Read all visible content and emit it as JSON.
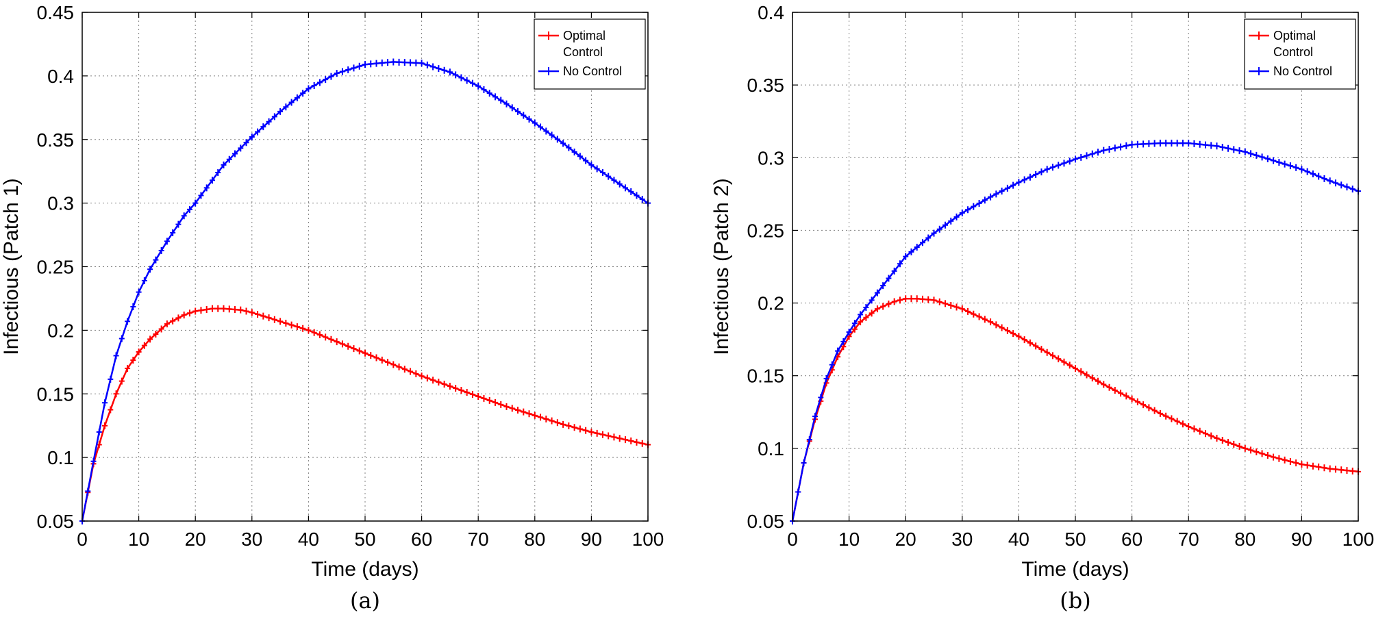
{
  "chart_data": [
    {
      "type": "line",
      "caption": "(a)",
      "xlabel": "Time (days)",
      "ylabel": "Infectious (Patch 1)",
      "xlim": [
        0,
        100
      ],
      "ylim": [
        0.05,
        0.45
      ],
      "xticks": [
        0,
        10,
        20,
        30,
        40,
        50,
        60,
        70,
        80,
        90,
        100
      ],
      "xtick_labels": [
        "0",
        "10",
        "20",
        "30",
        "40",
        "50",
        "60",
        "70",
        "80",
        "90",
        "100"
      ],
      "yticks": [
        0.05,
        0.1,
        0.15,
        0.2,
        0.25,
        0.3,
        0.35,
        0.4,
        0.45
      ],
      "ytick_labels": [
        "0.05",
        "0.1",
        "0.15",
        "0.2",
        "0.25",
        "0.3",
        "0.35",
        "0.4",
        "0.45"
      ],
      "grid": true,
      "legend_position": "top-right",
      "series": [
        {
          "name_lines": [
            "Optimal",
            "Control"
          ],
          "color": "#ff0000",
          "x": [
            0,
            2,
            4,
            6,
            8,
            10,
            12,
            15,
            18,
            20,
            23,
            25,
            28,
            30,
            35,
            40,
            45,
            50,
            55,
            60,
            65,
            70,
            75,
            80,
            85,
            90,
            95,
            100
          ],
          "y": [
            0.05,
            0.095,
            0.125,
            0.15,
            0.17,
            0.183,
            0.193,
            0.205,
            0.212,
            0.215,
            0.217,
            0.217,
            0.216,
            0.214,
            0.207,
            0.2,
            0.191,
            0.182,
            0.173,
            0.164,
            0.156,
            0.148,
            0.14,
            0.133,
            0.126,
            0.12,
            0.115,
            0.11
          ]
        },
        {
          "name": "No Control",
          "color": "#0000ff",
          "x": [
            0,
            2,
            4,
            6,
            8,
            10,
            12,
            15,
            18,
            20,
            25,
            30,
            35,
            40,
            45,
            50,
            55,
            60,
            65,
            70,
            75,
            80,
            85,
            90,
            95,
            100
          ],
          "y": [
            0.05,
            0.097,
            0.143,
            0.18,
            0.207,
            0.23,
            0.248,
            0.27,
            0.29,
            0.3,
            0.33,
            0.352,
            0.372,
            0.39,
            0.402,
            0.409,
            0.411,
            0.41,
            0.403,
            0.392,
            0.378,
            0.363,
            0.347,
            0.33,
            0.315,
            0.3
          ]
        }
      ]
    },
    {
      "type": "line",
      "caption": "(b)",
      "xlabel": "Time (days)",
      "ylabel": "Infectious (Patch 2)",
      "xlim": [
        0,
        100
      ],
      "ylim": [
        0.05,
        0.4
      ],
      "xticks": [
        0,
        10,
        20,
        30,
        40,
        50,
        60,
        70,
        80,
        90,
        100
      ],
      "xtick_labels": [
        "0",
        "10",
        "20",
        "30",
        "40",
        "50",
        "60",
        "70",
        "80",
        "90",
        "100"
      ],
      "yticks": [
        0.05,
        0.1,
        0.15,
        0.2,
        0.25,
        0.3,
        0.35,
        0.4
      ],
      "ytick_labels": [
        "0.05",
        "0.1",
        "0.15",
        "0.2",
        "0.25",
        "0.3",
        "0.35",
        "0.4"
      ],
      "grid": true,
      "legend_position": "top-right",
      "series": [
        {
          "name_lines": [
            "Optimal",
            "Control"
          ],
          "color": "#ff0000",
          "x": [
            0,
            2,
            4,
            6,
            8,
            10,
            12,
            15,
            18,
            20,
            22,
            25,
            30,
            35,
            40,
            45,
            50,
            55,
            60,
            65,
            70,
            75,
            80,
            85,
            90,
            95,
            100
          ],
          "y": [
            0.05,
            0.09,
            0.12,
            0.145,
            0.163,
            0.177,
            0.187,
            0.196,
            0.201,
            0.203,
            0.203,
            0.202,
            0.196,
            0.187,
            0.177,
            0.166,
            0.155,
            0.144,
            0.134,
            0.124,
            0.115,
            0.107,
            0.1,
            0.094,
            0.089,
            0.086,
            0.084
          ]
        },
        {
          "name": "No Control",
          "color": "#0000ff",
          "x": [
            0,
            2,
            4,
            6,
            8,
            10,
            12,
            15,
            18,
            20,
            25,
            30,
            35,
            40,
            45,
            50,
            55,
            60,
            65,
            70,
            75,
            80,
            85,
            90,
            95,
            100
          ],
          "y": [
            0.05,
            0.09,
            0.122,
            0.148,
            0.167,
            0.18,
            0.192,
            0.207,
            0.222,
            0.232,
            0.248,
            0.262,
            0.273,
            0.283,
            0.292,
            0.299,
            0.305,
            0.309,
            0.31,
            0.31,
            0.308,
            0.304,
            0.298,
            0.292,
            0.284,
            0.277
          ]
        }
      ]
    }
  ]
}
